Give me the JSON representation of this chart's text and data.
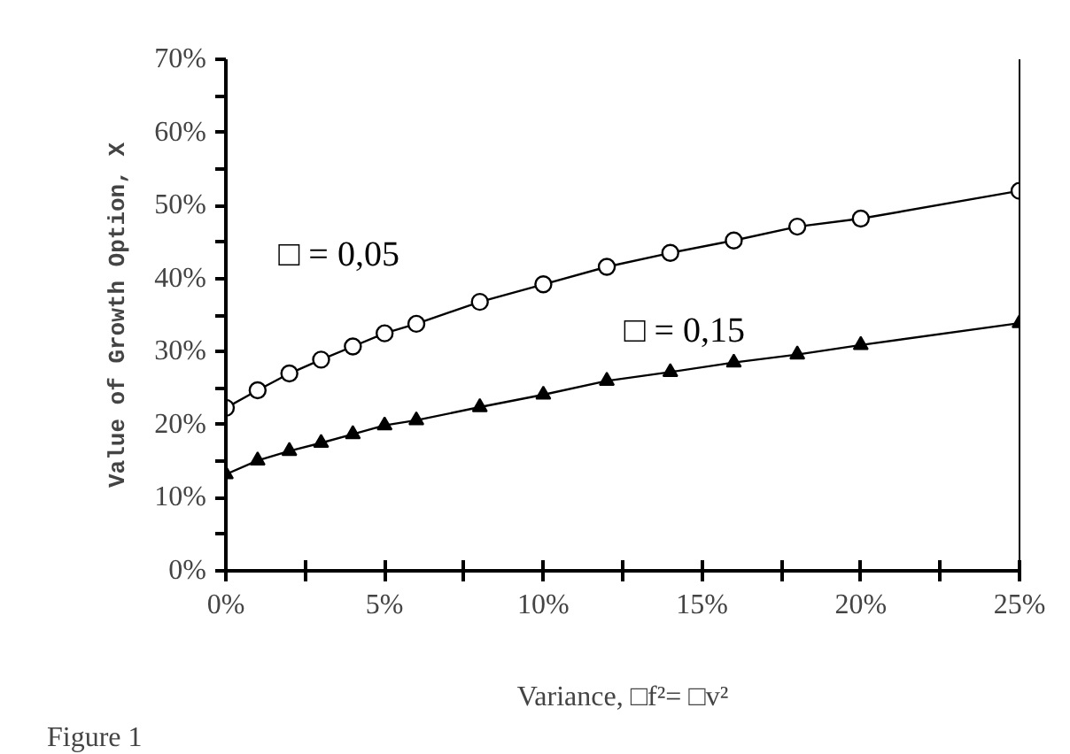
{
  "chart_data": {
    "type": "line",
    "xlabel": "Variance, □f²= □v²",
    "ylabel": "Value of Growth Option, X",
    "annotations": [
      "Figure 1"
    ],
    "x": [
      0,
      1,
      2,
      3,
      4,
      5,
      6,
      8,
      10,
      12,
      14,
      16,
      18,
      20,
      25
    ],
    "series": [
      {
        "name": "□ = 0,05",
        "color": "#000000",
        "marker": "circle",
        "values": [
          22.3,
          24.7,
          27.0,
          28.9,
          30.7,
          32.5,
          33.8,
          36.8,
          39.2,
          41.6,
          43.5,
          45.2,
          47.1,
          48.2,
          52.0
        ]
      },
      {
        "name": "□ = 0,15",
        "color": "#000000",
        "marker": "triangle",
        "values": [
          13.2,
          15.1,
          16.4,
          17.5,
          18.7,
          19.9,
          20.6,
          22.4,
          24.1,
          26.0,
          27.2,
          28.5,
          29.6,
          30.9,
          33.9
        ]
      }
    ],
    "xlim": [
      0,
      25
    ],
    "ylim": [
      0,
      70
    ],
    "xticks": [
      {
        "value": 0,
        "label": "0%"
      },
      {
        "value": 2.5,
        "label": null
      },
      {
        "value": 5,
        "label": "5%"
      },
      {
        "value": 7.5,
        "label": null
      },
      {
        "value": 10,
        "label": "10%"
      },
      {
        "value": 12.5,
        "label": null
      },
      {
        "value": 15,
        "label": "15%"
      },
      {
        "value": 17.5,
        "label": null
      },
      {
        "value": 20,
        "label": "20%"
      },
      {
        "value": 22.5,
        "label": null
      },
      {
        "value": 25,
        "label": "25%"
      }
    ],
    "yticks": [
      {
        "value": 0,
        "label": "0%"
      },
      {
        "value": 5,
        "label": null
      },
      {
        "value": 10,
        "label": "10%"
      },
      {
        "value": 15,
        "label": null
      },
      {
        "value": 20,
        "label": "20%"
      },
      {
        "value": 25,
        "label": null
      },
      {
        "value": 30,
        "label": "30%"
      },
      {
        "value": 35,
        "label": null
      },
      {
        "value": 40,
        "label": "40%"
      },
      {
        "value": 45,
        "label": null
      },
      {
        "value": 50,
        "label": "50%"
      },
      {
        "value": 55,
        "label": null
      },
      {
        "value": 60,
        "label": "60%"
      },
      {
        "value": 65,
        "label": null
      },
      {
        "value": 70,
        "label": "70%"
      }
    ],
    "grid": false,
    "line_style": "solid"
  }
}
